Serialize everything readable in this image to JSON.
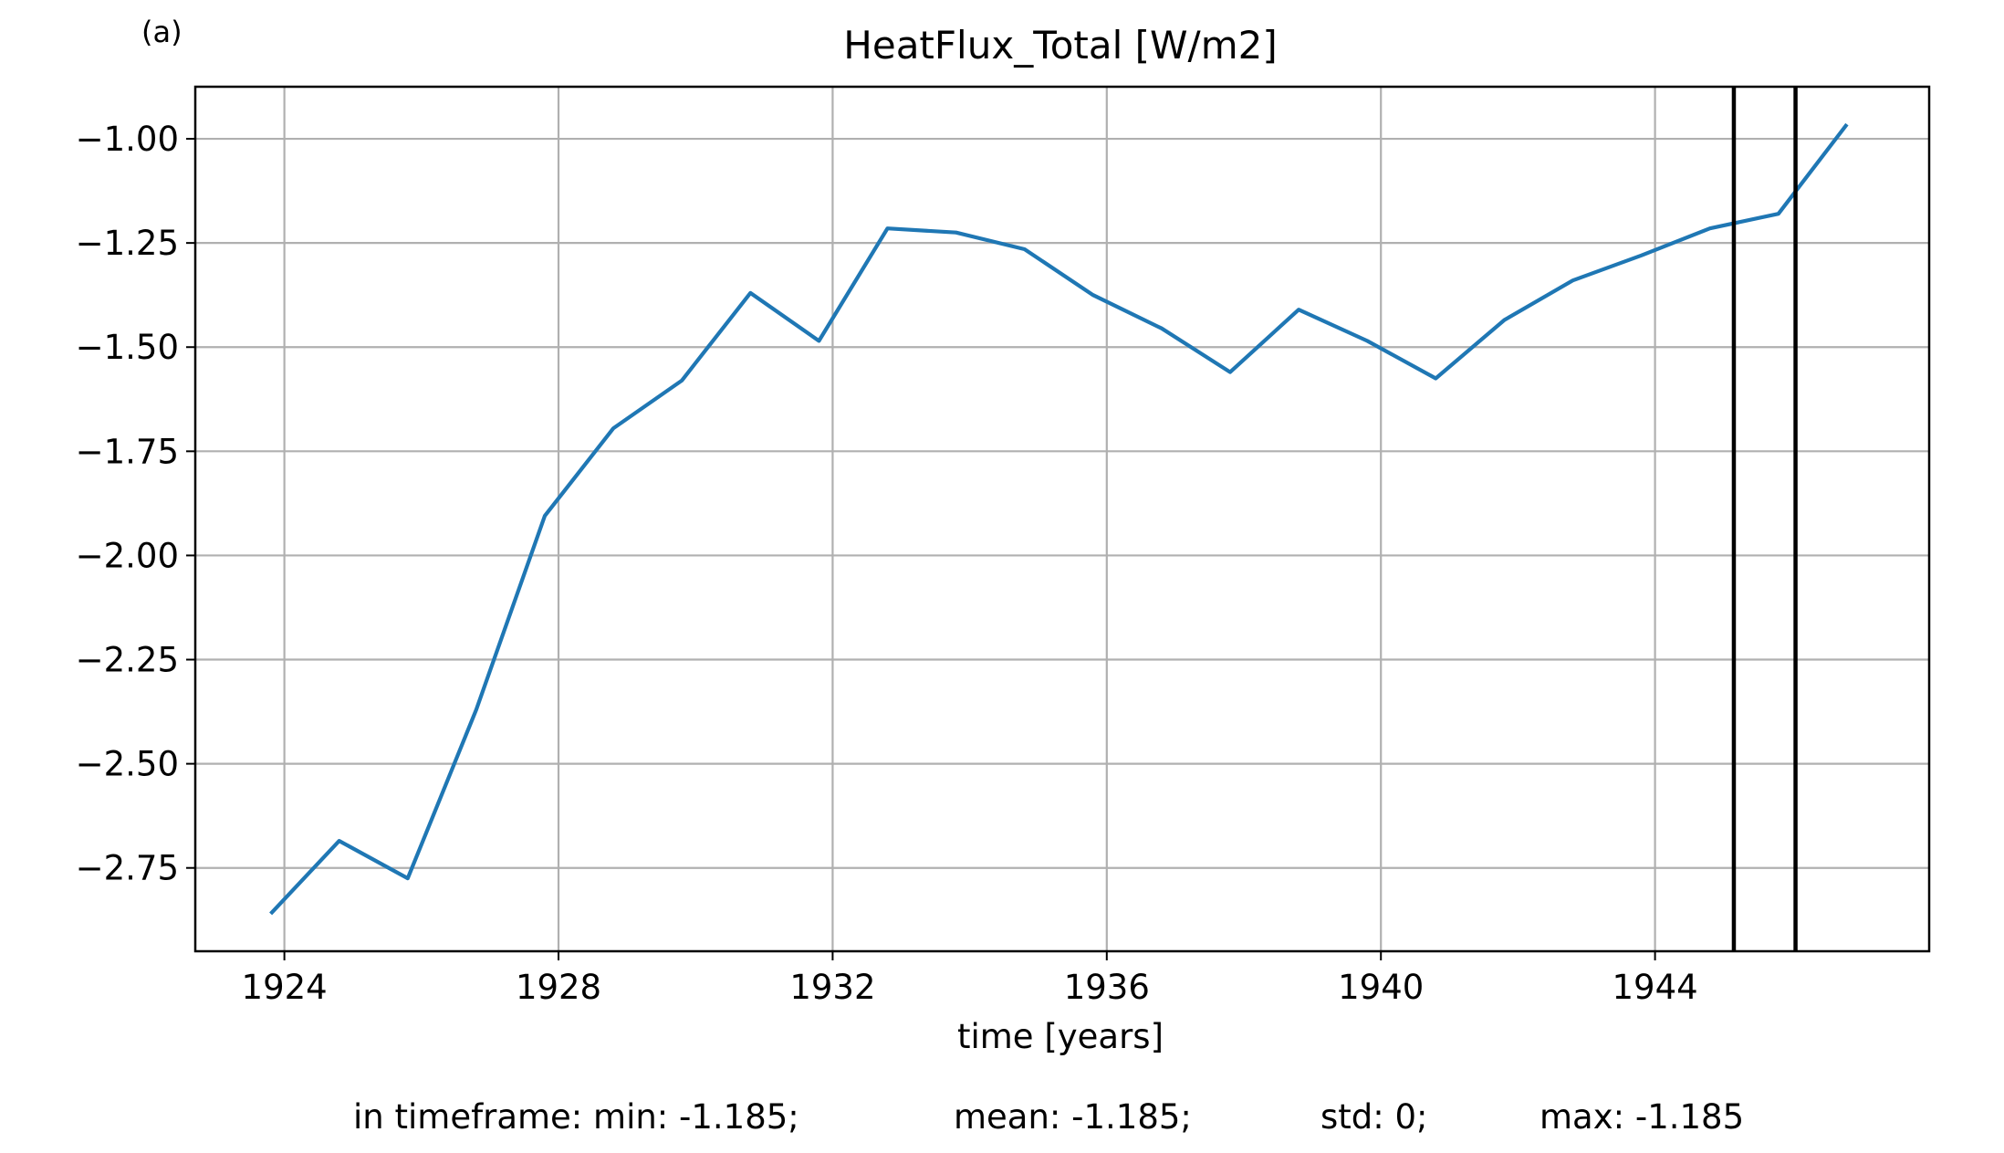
{
  "panel_label": "(a)",
  "footer": {
    "min_text": "in timeframe: min: -1.185;",
    "mean_text": "mean: -1.185;",
    "std_text": "std: 0;",
    "max_text": "max: -1.185"
  },
  "colors": {
    "series": "#1f77b4",
    "grid": "#b0b0b0",
    "axes": "#000000",
    "marker_lines": "#000000"
  },
  "chart_data": {
    "type": "line",
    "title": "HeatFlux_Total [W/m2]",
    "xlabel": "time [years]",
    "ylabel": "",
    "grid": true,
    "xlim": [
      1922.7,
      1948.0
    ],
    "ylim": [
      -2.95,
      -0.875
    ],
    "x_ticks": [
      1924,
      1928,
      1932,
      1936,
      1940,
      1944
    ],
    "x_tick_labels": [
      "1924",
      "1928",
      "1932",
      "1936",
      "1940",
      "1944"
    ],
    "y_ticks": [
      -1.0,
      -1.25,
      -1.5,
      -1.75,
      -2.0,
      -2.25,
      -2.5,
      -2.75
    ],
    "y_tick_labels": [
      "−1.00",
      "−1.25",
      "−1.50",
      "−1.75",
      "−2.00",
      "−2.25",
      "−2.50",
      "−2.75"
    ],
    "series": [
      {
        "x": [
          1923.8,
          1924.8,
          1925.8,
          1926.8,
          1927.8,
          1928.8,
          1929.8,
          1930.8,
          1931.8,
          1932.8,
          1933.8,
          1934.8,
          1935.8,
          1936.8,
          1937.8,
          1938.8,
          1939.8,
          1940.8,
          1941.8,
          1942.8,
          1943.8,
          1944.8,
          1945.8,
          1946.8
        ],
        "values": [
          -2.86,
          -2.685,
          -2.775,
          -2.37,
          -1.905,
          -1.695,
          -1.58,
          -1.37,
          -1.485,
          -1.215,
          -1.225,
          -1.265,
          -1.375,
          -1.455,
          -1.56,
          -1.41,
          -1.485,
          -1.575,
          -1.435,
          -1.34,
          -1.28,
          -1.215,
          -1.18,
          -0.965
        ]
      }
    ],
    "vertical_lines": [
      1945.15,
      1946.05
    ]
  }
}
